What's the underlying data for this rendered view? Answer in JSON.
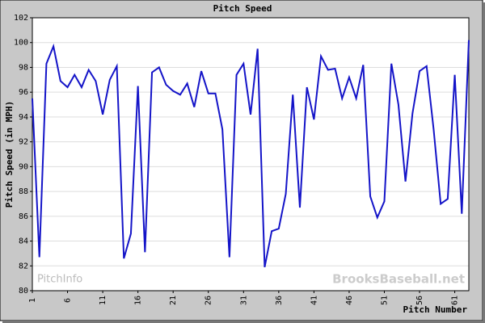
{
  "chart_data": {
    "type": "line",
    "title": "Pitch Speed",
    "ylabel": "Pitch Speed (in MPH)",
    "xlabel": "Pitch Number",
    "watermark_left": "PitchInfo",
    "watermark_right": "BrooksBaseball.net",
    "x": [
      1,
      2,
      3,
      4,
      5,
      6,
      7,
      8,
      9,
      10,
      11,
      12,
      13,
      14,
      15,
      16,
      17,
      18,
      19,
      20,
      21,
      22,
      23,
      24,
      25,
      26,
      27,
      28,
      29,
      30,
      31,
      32,
      33,
      34,
      35,
      36,
      37,
      38,
      39,
      40,
      41,
      42,
      43,
      44,
      45,
      46,
      47,
      48,
      49,
      50,
      51,
      52,
      53,
      54,
      55,
      56,
      57,
      58,
      59,
      60,
      61,
      62,
      63
    ],
    "values": [
      95.5,
      82.7,
      98.3,
      99.7,
      96.9,
      96.4,
      97.4,
      96.4,
      97.8,
      96.9,
      94.2,
      97.0,
      98.1,
      82.6,
      84.6,
      96.5,
      83.1,
      97.6,
      98.0,
      96.6,
      96.1,
      95.8,
      96.7,
      94.8,
      97.7,
      95.9,
      95.9,
      93.0,
      82.7,
      97.4,
      98.3,
      94.2,
      99.5,
      81.9,
      84.8,
      85.0,
      87.8,
      95.8,
      86.7,
      96.4,
      93.8,
      98.9,
      97.8,
      97.9,
      95.5,
      97.2,
      95.5,
      98.2,
      87.6,
      85.9,
      87.2,
      98.3,
      95.0,
      88.8,
      94.3,
      97.7,
      98.1,
      93.0,
      87.0,
      87.4,
      97.4,
      86.2,
      100.2
    ],
    "color": "#1414c8",
    "xlim": [
      1,
      63
    ],
    "xticks": [
      1,
      6,
      11,
      16,
      21,
      26,
      31,
      36,
      41,
      46,
      51,
      56,
      61
    ],
    "ylim": [
      80,
      102
    ],
    "yticks": [
      80,
      82,
      84,
      86,
      88,
      90,
      92,
      94,
      96,
      98,
      100,
      102
    ],
    "grid": true
  }
}
